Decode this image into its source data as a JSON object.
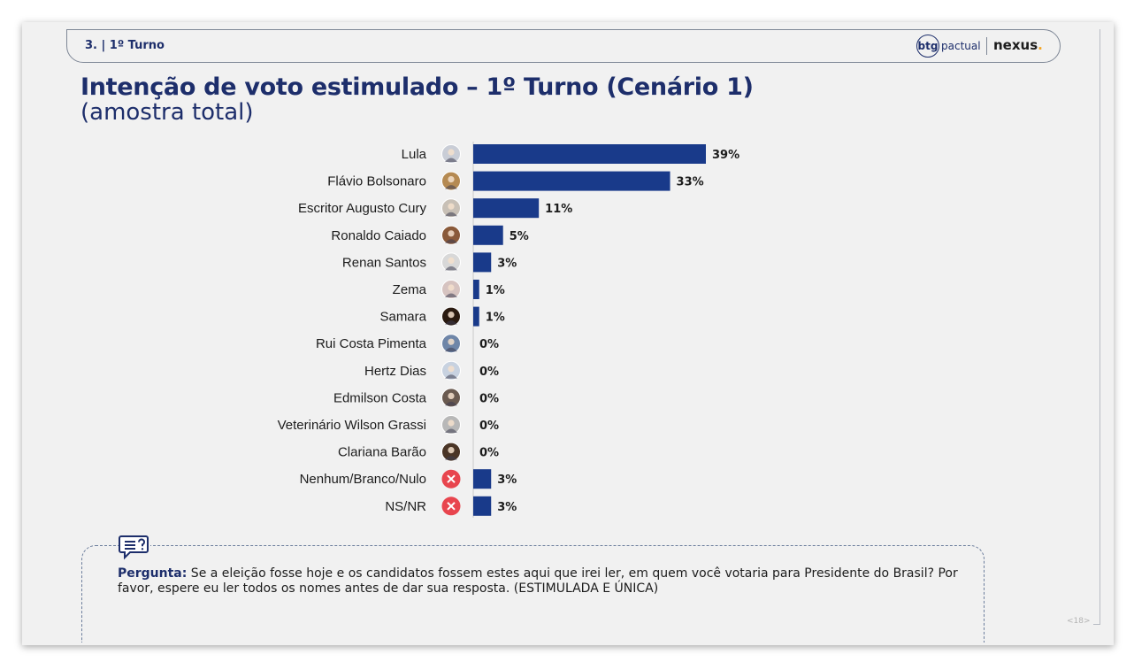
{
  "header": {
    "section": "3. | 1º Turno",
    "logo_btg_mark": "btg",
    "logo_btg_suffix": "pactual",
    "logo_nexus": "nexus",
    "logo_nexus_dot": "."
  },
  "title": "Intenção de voto estimulado – 1º Turno (Cenário 1)",
  "subtitle": "(amostra total)",
  "colors": {
    "bar": "#193a8a",
    "title": "#1d2e6b",
    "x_icon": "#e8454e"
  },
  "chart_data": {
    "type": "bar",
    "orientation": "horizontal",
    "categories": [
      "Lula",
      "Flávio Bolsonaro",
      "Escritor Augusto Cury",
      "Ronaldo Caiado",
      "Renan Santos",
      "Zema",
      "Samara",
      "Rui Costa Pimenta",
      "Hertz Dias",
      "Edmilson Costa",
      "Veterinário Wilson Grassi",
      "Clariana Barão",
      "Nenhum/Branco/Nulo",
      "NS/NR"
    ],
    "values": [
      39,
      33,
      11,
      5,
      3,
      1,
      1,
      0,
      0,
      0,
      0,
      0,
      3,
      3
    ],
    "value_labels": [
      "39%",
      "33%",
      "11%",
      "5%",
      "3%",
      "1%",
      "1%",
      "0%",
      "0%",
      "0%",
      "0%",
      "0%",
      "3%",
      "3%"
    ],
    "icons": [
      "candidate-photo",
      "candidate-photo",
      "candidate-photo",
      "candidate-photo",
      "candidate-photo",
      "candidate-photo",
      "candidate-photo",
      "candidate-photo",
      "candidate-photo",
      "candidate-photo",
      "candidate-photo",
      "candidate-photo",
      "x-circle-icon",
      "x-circle-icon"
    ],
    "unit": "%",
    "xlim": [
      0,
      40
    ],
    "grid": false,
    "legend": "none"
  },
  "question": {
    "label": "Pergunta:",
    "text": " Se a eleição fosse hoje e os candidatos fossem estes aqui que irei ler, em quem você votaria para Presidente do Brasil? Por favor, espere eu ler todos os nomes antes de dar sua resposta. (ESTIMULADA E ÚNICA)"
  },
  "page_number": "<18>"
}
